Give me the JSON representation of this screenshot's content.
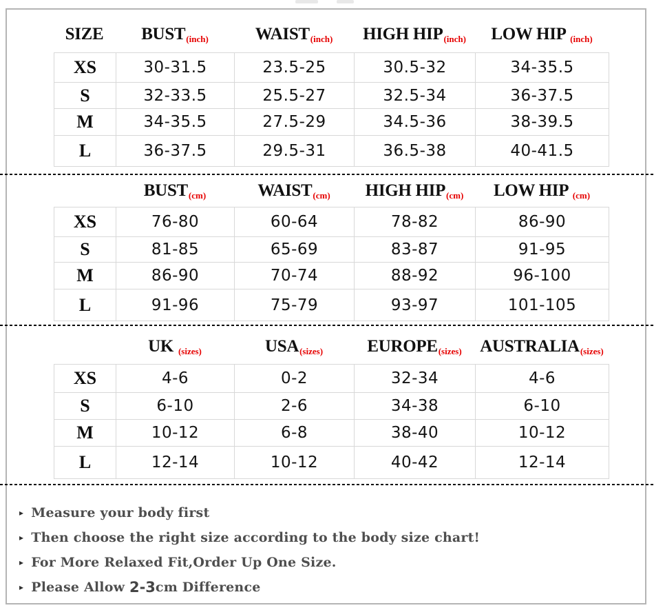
{
  "page": {
    "background": "#ffffff",
    "frame_border_color": "#b4b4b4",
    "grid_line_color": "#d8d8d8",
    "accent_red": "#e60000",
    "text_black": "#111111",
    "note_gray": "#4e4e4e"
  },
  "tables": [
    {
      "name": "body-measurements-inches",
      "header": [
        {
          "label": "SIZE",
          "sub": ""
        },
        {
          "label": "BUST",
          "sub": "(inch)"
        },
        {
          "label": "WAIST",
          "sub": "(inch)"
        },
        {
          "label": "HIGH HIP",
          "sub": "(inch)"
        },
        {
          "label": "LOW HIP ",
          "sub": "(inch)"
        }
      ],
      "rows": [
        {
          "size": "XS",
          "cells": [
            "30-31.5",
            "23.5-25",
            "30.5-32",
            "34-35.5"
          ]
        },
        {
          "size": "S",
          "cells": [
            "32-33.5",
            "25.5-27",
            "32.5-34",
            "36-37.5"
          ]
        },
        {
          "size": "M",
          "cells": [
            "34-35.5",
            "27.5-29",
            "34.5-36",
            "38-39.5"
          ]
        },
        {
          "size": "L",
          "cells": [
            "36-37.5",
            "29.5-31",
            "36.5-38",
            "40-41.5"
          ]
        }
      ]
    },
    {
      "name": "body-measurements-cm",
      "header": [
        {
          "label": "",
          "sub": ""
        },
        {
          "label": "BUST",
          "sub": "(cm)"
        },
        {
          "label": "WAIST",
          "sub": "(cm)"
        },
        {
          "label": "HIGH HIP",
          "sub": "(cm)"
        },
        {
          "label": "LOW HIP ",
          "sub": "(cm)"
        }
      ],
      "rows": [
        {
          "size": "XS",
          "cells": [
            "76-80",
            "60-64",
            "78-82",
            "86-90"
          ]
        },
        {
          "size": "S",
          "cells": [
            "81-85",
            "65-69",
            "83-87",
            "91-95"
          ]
        },
        {
          "size": "M",
          "cells": [
            "86-90",
            "70-74",
            "88-92",
            "96-100"
          ]
        },
        {
          "size": "L",
          "cells": [
            "91-96",
            "75-79",
            "93-97",
            "101-105"
          ]
        }
      ]
    },
    {
      "name": "international-size-conversion",
      "header": [
        {
          "label": "",
          "sub": ""
        },
        {
          "label": "UK ",
          "sub": "(sizes)"
        },
        {
          "label": "USA",
          "sub": "(sizes)"
        },
        {
          "label": "EUROPE",
          "sub": "(sizes)"
        },
        {
          "label": "AUSTRALIA",
          "sub": "(sizes)"
        }
      ],
      "rows": [
        {
          "size": "XS",
          "cells": [
            "4-6",
            "0-2",
            "32-34",
            "4-6"
          ]
        },
        {
          "size": "S",
          "cells": [
            "6-10",
            "2-6",
            "34-38",
            "6-10"
          ]
        },
        {
          "size": "M",
          "cells": [
            "10-12",
            "6-8",
            "38-40",
            "10-12"
          ]
        },
        {
          "size": "L",
          "cells": [
            "12-14",
            "10-12",
            "40-42",
            "12-14"
          ]
        }
      ]
    }
  ],
  "notes": {
    "bullet": "▸",
    "items": [
      {
        "pre": "Measure your body first",
        "em": "",
        "post": ""
      },
      {
        "pre": "Then choose the right size according to the body size chart!",
        "em": "",
        "post": ""
      },
      {
        "pre": "For More Relaxed Fit,Order Up One Size.",
        "em": "",
        "post": ""
      },
      {
        "pre": "Please Allow ",
        "em": "2-3",
        "post": "cm Difference"
      }
    ]
  }
}
